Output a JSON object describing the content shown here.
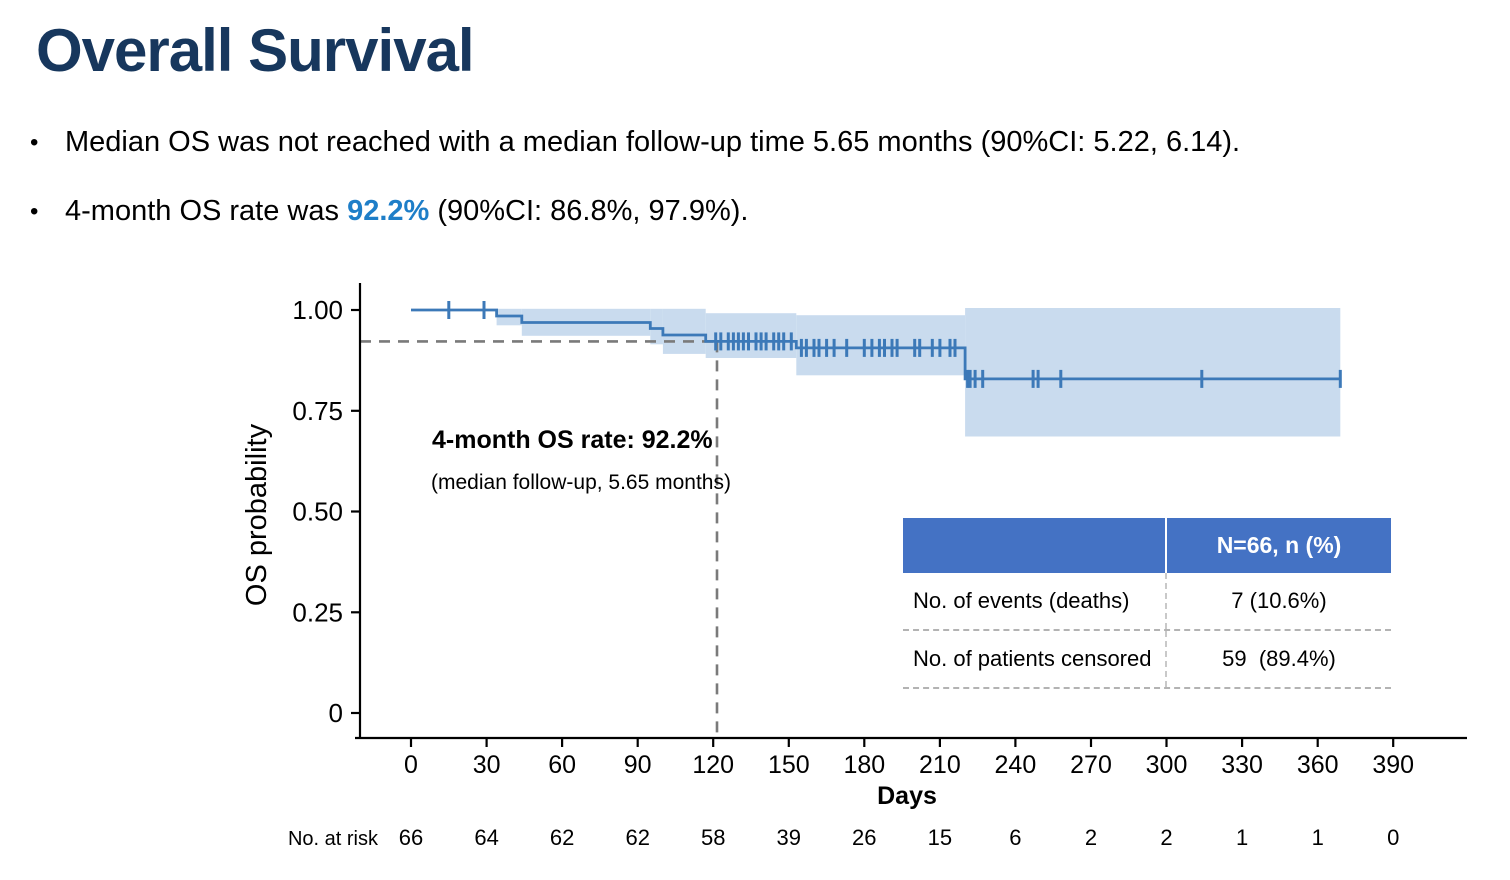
{
  "slide": {
    "title": "Overall Survival",
    "bullets": {
      "b1": "Median OS was not reached with a median follow-up time 5.65 months (90%CI: 5.22, 6.14).",
      "b2_prefix": "4-month OS rate was ",
      "b2_accent": "92.2%",
      "b2_suffix": " (90%CI: 86.8%, 97.9%)."
    }
  },
  "chart_data": {
    "type": "line",
    "subtype": "kaplan-meier-step",
    "title": "",
    "xlabel": "Days",
    "ylabel": "OS probability",
    "xlim": [
      0,
      390
    ],
    "ylim": [
      0,
      1.0
    ],
    "grid": false,
    "legend": false,
    "x_ticks": [
      0,
      30,
      60,
      90,
      120,
      150,
      180,
      210,
      240,
      270,
      300,
      330,
      360,
      390
    ],
    "y_ticks": [
      {
        "v": 1.0,
        "label": "1.00"
      },
      {
        "v": 0.75,
        "label": "0.75"
      },
      {
        "v": 0.5,
        "label": "0.50"
      },
      {
        "v": 0.25,
        "label": "0.25"
      },
      {
        "v": 0,
        "label": "0"
      }
    ],
    "km_steps": [
      [
        0,
        1.0
      ],
      [
        34,
        0.985
      ],
      [
        44,
        0.969
      ],
      [
        95,
        0.954
      ],
      [
        100,
        0.938
      ],
      [
        117,
        0.922
      ],
      [
        153,
        0.906
      ],
      [
        220,
        0.829
      ]
    ],
    "end_day": 369,
    "ci_band": [
      [
        34,
        44,
        0.962,
        1.003
      ],
      [
        44,
        95,
        0.936,
        1.003
      ],
      [
        95,
        100,
        0.915,
        1.003
      ],
      [
        100,
        117,
        0.891,
        1.003
      ],
      [
        117,
        153,
        0.881,
        0.992
      ],
      [
        153,
        220,
        0.838,
        0.987
      ],
      [
        220,
        369,
        0.686,
        1.005
      ]
    ],
    "censor_marks": [
      [
        15,
        1.0
      ],
      [
        29,
        1.0
      ],
      [
        121,
        0.922
      ],
      [
        123,
        0.922
      ],
      [
        126,
        0.922
      ],
      [
        128,
        0.922
      ],
      [
        130,
        0.922
      ],
      [
        132,
        0.922
      ],
      [
        134,
        0.922
      ],
      [
        137,
        0.922
      ],
      [
        139,
        0.922
      ],
      [
        141,
        0.922
      ],
      [
        144,
        0.922
      ],
      [
        146,
        0.922
      ],
      [
        148,
        0.922
      ],
      [
        151,
        0.922
      ],
      [
        155,
        0.906
      ],
      [
        157,
        0.906
      ],
      [
        160,
        0.906
      ],
      [
        162,
        0.906
      ],
      [
        165,
        0.906
      ],
      [
        168,
        0.906
      ],
      [
        173,
        0.906
      ],
      [
        180,
        0.906
      ],
      [
        183,
        0.906
      ],
      [
        186,
        0.906
      ],
      [
        188,
        0.906
      ],
      [
        191,
        0.906
      ],
      [
        193,
        0.906
      ],
      [
        200,
        0.906
      ],
      [
        202,
        0.906
      ],
      [
        207,
        0.906
      ],
      [
        210,
        0.906
      ],
      [
        214,
        0.906
      ],
      [
        216,
        0.906
      ],
      [
        221,
        0.829
      ],
      [
        222,
        0.829
      ],
      [
        224,
        0.829
      ],
      [
        227,
        0.829
      ],
      [
        247,
        0.829
      ],
      [
        249,
        0.829
      ],
      [
        258,
        0.829
      ],
      [
        314,
        0.829
      ],
      [
        369,
        0.829
      ]
    ],
    "reference_lines": {
      "day": 121.5,
      "prob": 0.922
    },
    "annotation": {
      "line1": "4-month OS rate: 92.2%",
      "line2": "(median follow-up, 5.65 months)"
    },
    "at_risk": {
      "label": "No. at risk",
      "values": [
        66,
        64,
        62,
        62,
        58,
        39,
        26,
        15,
        6,
        2,
        2,
        1,
        1,
        0
      ]
    },
    "colors": {
      "curve": "#3C79B8",
      "band": "#C9DBEE",
      "axis": "#000000",
      "dashed": "#7A7A7A"
    }
  },
  "inset_table": {
    "header_value": "N=66, n (%)",
    "rows": [
      {
        "label": "No. of events (deaths)",
        "value": "7 (10.6%)"
      },
      {
        "label": "No. of patients censored",
        "value": "59  (89.4%)"
      }
    ]
  }
}
